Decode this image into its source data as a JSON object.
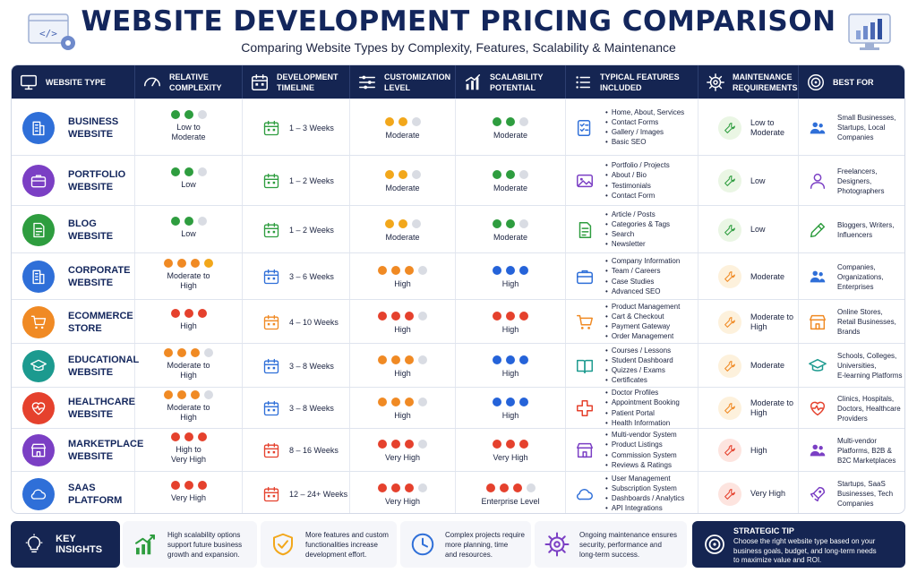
{
  "header": {
    "title": "WEBSITE DEVELOPMENT PRICING COMPARISON",
    "subtitle": "Comparing Website Types by Complexity, Features, Scalability & Maintenance"
  },
  "columns": [
    {
      "label": "WEBSITE TYPE",
      "icon": "monitor-icon"
    },
    {
      "label": "RELATIVE\nCOMPLEXITY",
      "icon": "gauge-icon"
    },
    {
      "label": "DEVELOPMENT\nTIMELINE",
      "icon": "calendar-icon"
    },
    {
      "label": "CUSTOMIZATION\nLEVEL",
      "icon": "sliders-icon"
    },
    {
      "label": "SCALABILITY\nPOTENTIAL",
      "icon": "bar-chart-icon"
    },
    {
      "label": "TYPICAL FEATURES\nINCLUDED",
      "icon": "list-icon"
    },
    {
      "label": "MAINTENANCE\nREQUIREMENTS",
      "icon": "gears-icon"
    },
    {
      "label": "BEST FOR",
      "icon": "target-icon"
    }
  ],
  "colors": {
    "green": "#2e9d3f",
    "yellow": "#f2a71b",
    "orange": "#f08a24",
    "red": "#e5412d",
    "blue": "#2563d9",
    "grey": "#d9dce3",
    "navy": "#152552"
  },
  "rows": [
    {
      "name": "BUSINESS\nWEBSITE",
      "icon": "building-icon",
      "icon_color": "#2f6fd8",
      "complexity": {
        "dots": [
          "green",
          "green",
          "grey"
        ],
        "label": "Low to\nModerate"
      },
      "timeline": {
        "label": "1 – 3 Weeks",
        "color": "#2e9d3f"
      },
      "customization": {
        "dots": [
          "yellow",
          "yellow",
          "grey"
        ],
        "label": "Moderate"
      },
      "scalability": {
        "dots": [
          "green",
          "green",
          "grey"
        ],
        "label": "Moderate"
      },
      "features_icon": "checklist-icon",
      "features_color": "#2f6fd8",
      "features": [
        "Home, About, Services",
        "Contact Forms",
        "Gallery / Images",
        "Basic SEO"
      ],
      "maintenance": {
        "label": "Low to\nModerate",
        "tone": "green"
      },
      "best_for": {
        "label": "Small Businesses,\nStartups, Local\nCompanies",
        "icon": "people-icon",
        "color": "#2f6fd8"
      }
    },
    {
      "name": "PORTFOLIO\nWEBSITE",
      "icon": "briefcase-icon",
      "icon_color": "#7b3fc4",
      "complexity": {
        "dots": [
          "green",
          "green",
          "grey"
        ],
        "label": "Low"
      },
      "timeline": {
        "label": "1 – 2 Weeks",
        "color": "#2e9d3f"
      },
      "customization": {
        "dots": [
          "yellow",
          "yellow",
          "grey"
        ],
        "label": "Moderate"
      },
      "scalability": {
        "dots": [
          "green",
          "green",
          "grey"
        ],
        "label": "Moderate"
      },
      "features_icon": "image-icon",
      "features_color": "#7b3fc4",
      "features": [
        "Portfolio / Projects",
        "About / Bio",
        "Testimonials",
        "Contact Form"
      ],
      "maintenance": {
        "label": "Low",
        "tone": "green"
      },
      "best_for": {
        "label": "Freelancers,\nDesigners,\nPhotographers",
        "icon": "person-icon",
        "color": "#7b3fc4"
      }
    },
    {
      "name": "BLOG\nWEBSITE",
      "icon": "document-pen-icon",
      "icon_color": "#2e9d3f",
      "complexity": {
        "dots": [
          "green",
          "green",
          "grey"
        ],
        "label": "Low"
      },
      "timeline": {
        "label": "1 – 2 Weeks",
        "color": "#2e9d3f"
      },
      "customization": {
        "dots": [
          "yellow",
          "yellow",
          "grey"
        ],
        "label": "Moderate"
      },
      "scalability": {
        "dots": [
          "green",
          "green",
          "grey"
        ],
        "label": "Moderate"
      },
      "features_icon": "document-icon",
      "features_color": "#2e9d3f",
      "features": [
        "Article / Posts",
        "Categories & Tags",
        "Search",
        "Newsletter"
      ],
      "maintenance": {
        "label": "Low",
        "tone": "green"
      },
      "best_for": {
        "label": "Bloggers, Writers,\nInfluencers",
        "icon": "pen-icon",
        "color": "#2e9d3f"
      }
    },
    {
      "name": "CORPORATE\nWEBSITE",
      "icon": "office-building-icon",
      "icon_color": "#2f6fd8",
      "complexity": {
        "dots": [
          "orange",
          "orange",
          "orange",
          "yellow"
        ],
        "label": "Moderate to\nHigh"
      },
      "timeline": {
        "label": "3 – 6 Weeks",
        "color": "#2f6fd8"
      },
      "customization": {
        "dots": [
          "orange",
          "orange",
          "orange",
          "grey"
        ],
        "label": "High"
      },
      "scalability": {
        "dots": [
          "blue",
          "blue",
          "blue"
        ],
        "label": "High"
      },
      "features_icon": "briefcase-icon",
      "features_color": "#2f6fd8",
      "features": [
        "Company Information",
        "Team / Careers",
        "Case Studies",
        "Advanced SEO"
      ],
      "maintenance": {
        "label": "Moderate",
        "tone": "orange"
      },
      "best_for": {
        "label": "Companies,\nOrganizations,\nEnterprises",
        "icon": "people-icon",
        "color": "#2f6fd8"
      }
    },
    {
      "name": "ECOMMERCE\nSTORE",
      "icon": "cart-icon",
      "icon_color": "#f08a24",
      "complexity": {
        "dots": [
          "red",
          "red",
          "red"
        ],
        "label": "High"
      },
      "timeline": {
        "label": "4 – 10 Weeks",
        "color": "#f08a24"
      },
      "customization": {
        "dots": [
          "red",
          "red",
          "red",
          "grey"
        ],
        "label": "High"
      },
      "scalability": {
        "dots": [
          "red",
          "red",
          "red"
        ],
        "label": "High"
      },
      "features_icon": "cart-icon",
      "features_color": "#f08a24",
      "features": [
        "Product Management",
        "Cart & Checkout",
        "Payment Gateway",
        "Order Management"
      ],
      "maintenance": {
        "label": "Moderate to\nHigh",
        "tone": "orange"
      },
      "best_for": {
        "label": "Online Stores,\nRetail Businesses,\nBrands",
        "icon": "store-icon",
        "color": "#f08a24"
      }
    },
    {
      "name": "EDUCATIONAL\nWEBSITE",
      "icon": "graduation-cap-icon",
      "icon_color": "#1c9a8f",
      "complexity": {
        "dots": [
          "orange",
          "orange",
          "orange",
          "grey"
        ],
        "label": "Moderate to\nHigh"
      },
      "timeline": {
        "label": "3 – 8 Weeks",
        "color": "#2f6fd8"
      },
      "customization": {
        "dots": [
          "orange",
          "orange",
          "orange",
          "grey"
        ],
        "label": "High"
      },
      "scalability": {
        "dots": [
          "blue",
          "blue",
          "blue"
        ],
        "label": "High"
      },
      "features_icon": "book-icon",
      "features_color": "#1c9a8f",
      "features": [
        "Courses / Lessons",
        "Student Dashboard",
        "Quizzes / Exams",
        "Certificates"
      ],
      "maintenance": {
        "label": "Moderate",
        "tone": "orange"
      },
      "best_for": {
        "label": "Schools, Colleges,\nUniversities,\nE-learning Platforms",
        "icon": "graduation-cap-icon",
        "color": "#1c9a8f"
      }
    },
    {
      "name": "HEALTHCARE\nWEBSITE",
      "icon": "heart-pulse-icon",
      "icon_color": "#e5412d",
      "complexity": {
        "dots": [
          "orange",
          "orange",
          "orange",
          "grey"
        ],
        "label": "Moderate to\nHigh"
      },
      "timeline": {
        "label": "3 – 8 Weeks",
        "color": "#2f6fd8"
      },
      "customization": {
        "dots": [
          "orange",
          "orange",
          "orange",
          "grey"
        ],
        "label": "High"
      },
      "scalability": {
        "dots": [
          "blue",
          "blue",
          "blue"
        ],
        "label": "High"
      },
      "features_icon": "medical-cross-icon",
      "features_color": "#e5412d",
      "features": [
        "Doctor Profiles",
        "Appointment Booking",
        "Patient Portal",
        "Health Information"
      ],
      "maintenance": {
        "label": "Moderate to\nHigh",
        "tone": "orange"
      },
      "best_for": {
        "label": "Clinics, Hospitals,\nDoctors, Healthcare\nProviders",
        "icon": "heart-icon",
        "color": "#e5412d"
      }
    },
    {
      "name": "MARKETPLACE\nWEBSITE",
      "icon": "marketplace-icon",
      "icon_color": "#7b3fc4",
      "complexity": {
        "dots": [
          "red",
          "red",
          "red"
        ],
        "label": "High to\nVery High"
      },
      "timeline": {
        "label": "8 – 16 Weeks",
        "color": "#e5412d"
      },
      "customization": {
        "dots": [
          "red",
          "red",
          "red",
          "grey"
        ],
        "label": "Very High"
      },
      "scalability": {
        "dots": [
          "red",
          "red",
          "red"
        ],
        "label": "Very High"
      },
      "features_icon": "store-icon",
      "features_color": "#7b3fc4",
      "features": [
        "Multi-vendor System",
        "Product Listings",
        "Commission System",
        "Reviews & Ratings"
      ],
      "maintenance": {
        "label": "High",
        "tone": "red"
      },
      "best_for": {
        "label": "Multi-vendor\nPlatforms, B2B &\nB2C Marketplaces",
        "icon": "people-icon",
        "color": "#7b3fc4"
      }
    },
    {
      "name": "SAAS\nPLATFORM",
      "icon": "cloud-gear-icon",
      "icon_color": "#2f6fd8",
      "complexity": {
        "dots": [
          "red",
          "red",
          "red"
        ],
        "label": "Very High"
      },
      "timeline": {
        "label": "12 – 24+ Weeks",
        "color": "#e5412d"
      },
      "customization": {
        "dots": [
          "red",
          "red",
          "red",
          "grey"
        ],
        "label": "Very High"
      },
      "scalability": {
        "dots": [
          "red",
          "red",
          "red",
          "grey"
        ],
        "label": "Enterprise Level"
      },
      "features_icon": "cloud-icon",
      "features_color": "#2f6fd8",
      "features": [
        "User Management",
        "Subscription System",
        "Dashboards / Analytics",
        "API Integrations"
      ],
      "maintenance": {
        "label": "Very High",
        "tone": "red"
      },
      "best_for": {
        "label": "Startups, SaaS\nBusinesses, Tech\nCompanies",
        "icon": "rocket-icon",
        "color": "#7b3fc4"
      }
    }
  ],
  "footer": {
    "key_insights": "KEY INSIGHTS",
    "insights": [
      {
        "text": "High scalability options\nsupport future business\ngrowth and expansion.",
        "icon": "growth-chart-icon",
        "color": "#2e9d3f"
      },
      {
        "text": "More features and custom\nfunctionalities increase\ndevelopment effort.",
        "icon": "shield-check-icon",
        "color": "#f2a71b"
      },
      {
        "text": "Complex projects require\nmore planning, time\nand resources.",
        "icon": "clock-icon",
        "color": "#2f6fd8"
      },
      {
        "text": "Ongoing maintenance ensures\nsecurity, performance and\nlong-term success.",
        "icon": "gear-icon",
        "color": "#7b3fc4"
      }
    ],
    "tip_title": "STRATEGIC TIP",
    "tip_text": "Choose the right website type based on your\nbusiness goals, budget, and long-term needs\nto maximize value and ROI."
  }
}
